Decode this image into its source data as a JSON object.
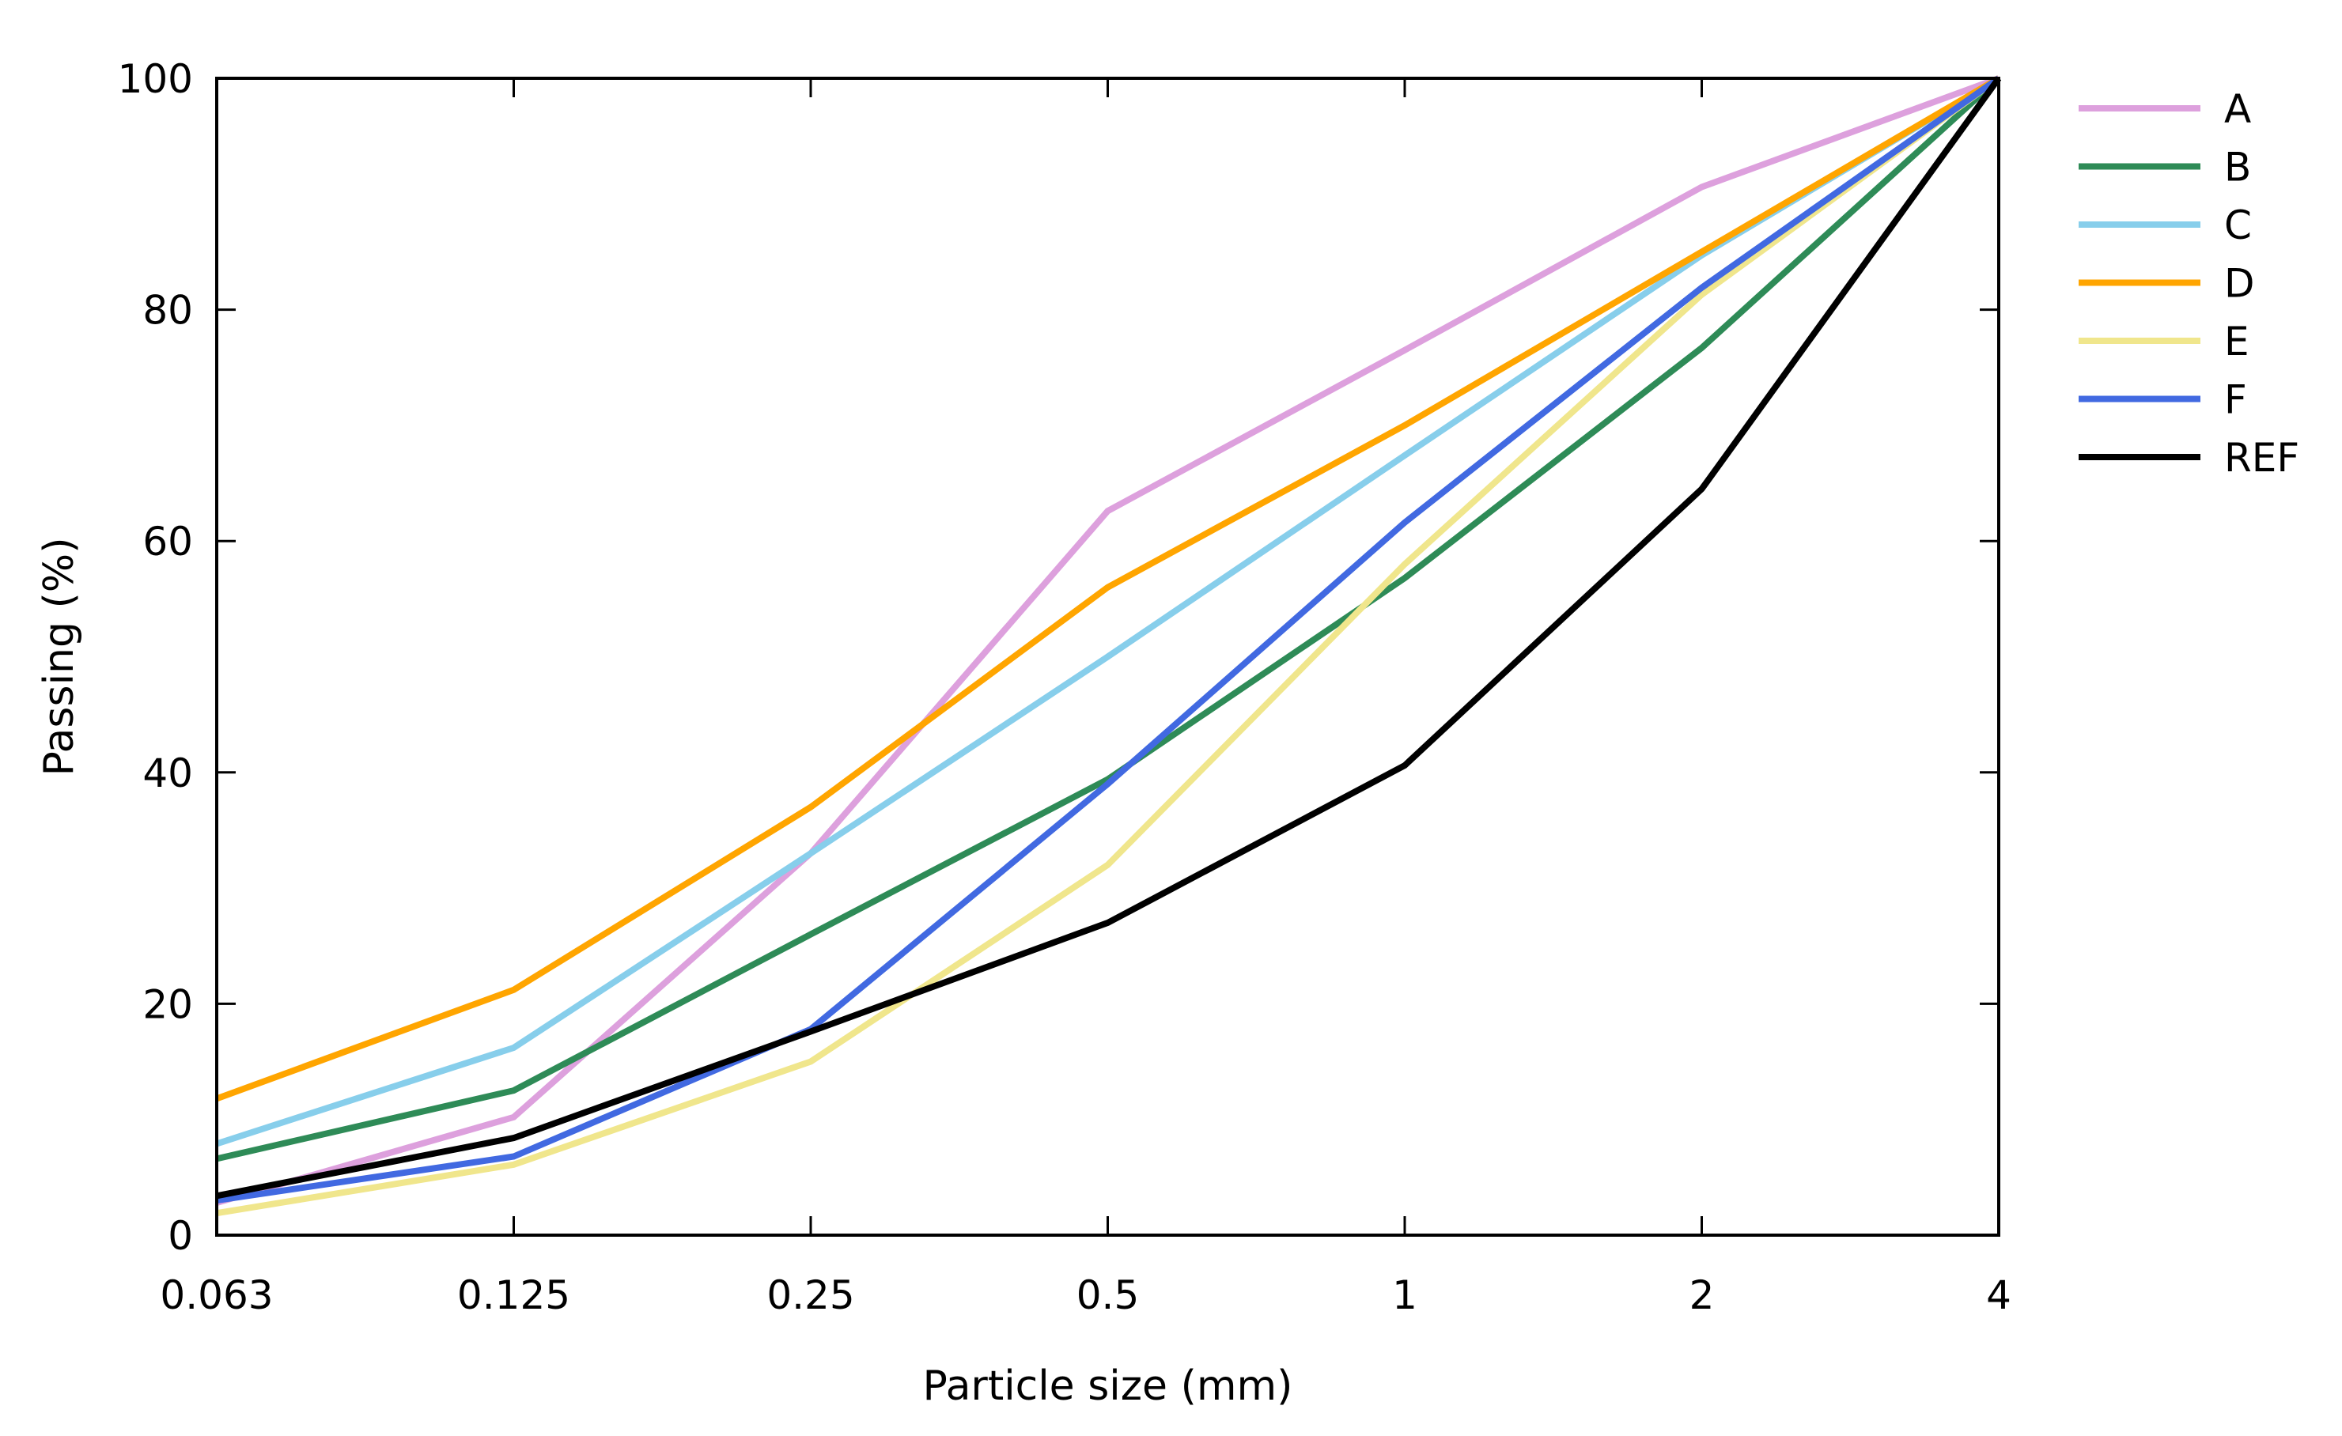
{
  "chart_data": {
    "type": "line",
    "title": "",
    "xlabel": "Particle size (mm)",
    "ylabel": "Passing (%)",
    "x_scale": "log2",
    "categories": [
      "0.063",
      "0.125",
      "0.25",
      "0.5",
      "1",
      "2",
      "4"
    ],
    "ylim": [
      0,
      100
    ],
    "yticks": [
      0,
      20,
      40,
      60,
      80,
      100
    ],
    "grid": false,
    "legend_position": "right",
    "series": [
      {
        "name": "A",
        "color": "#dda0dd",
        "values": [
          2.8,
          10.2,
          33.0,
          62.6,
          76.5,
          90.6,
          100
        ]
      },
      {
        "name": "B",
        "color": "#2e8b57",
        "values": [
          6.6,
          12.5,
          26.0,
          39.4,
          56.8,
          76.7,
          100
        ]
      },
      {
        "name": "C",
        "color": "#87ceeb",
        "values": [
          7.9,
          16.2,
          33.0,
          50.0,
          67.4,
          84.7,
          100
        ]
      },
      {
        "name": "D",
        "color": "#ffa500",
        "values": [
          11.8,
          21.2,
          37.0,
          56.0,
          70.0,
          85.0,
          100
        ]
      },
      {
        "name": "E",
        "color": "#f0e68c",
        "values": [
          1.9,
          6.1,
          15.0,
          32.0,
          58.0,
          81.3,
          100
        ]
      },
      {
        "name": "F",
        "color": "#4169e1",
        "values": [
          3.0,
          6.8,
          17.8,
          39.0,
          61.6,
          81.9,
          100
        ]
      },
      {
        "name": "REF",
        "color": "#000000",
        "values": [
          3.4,
          8.4,
          17.6,
          27.0,
          40.6,
          64.5,
          100
        ]
      }
    ]
  }
}
